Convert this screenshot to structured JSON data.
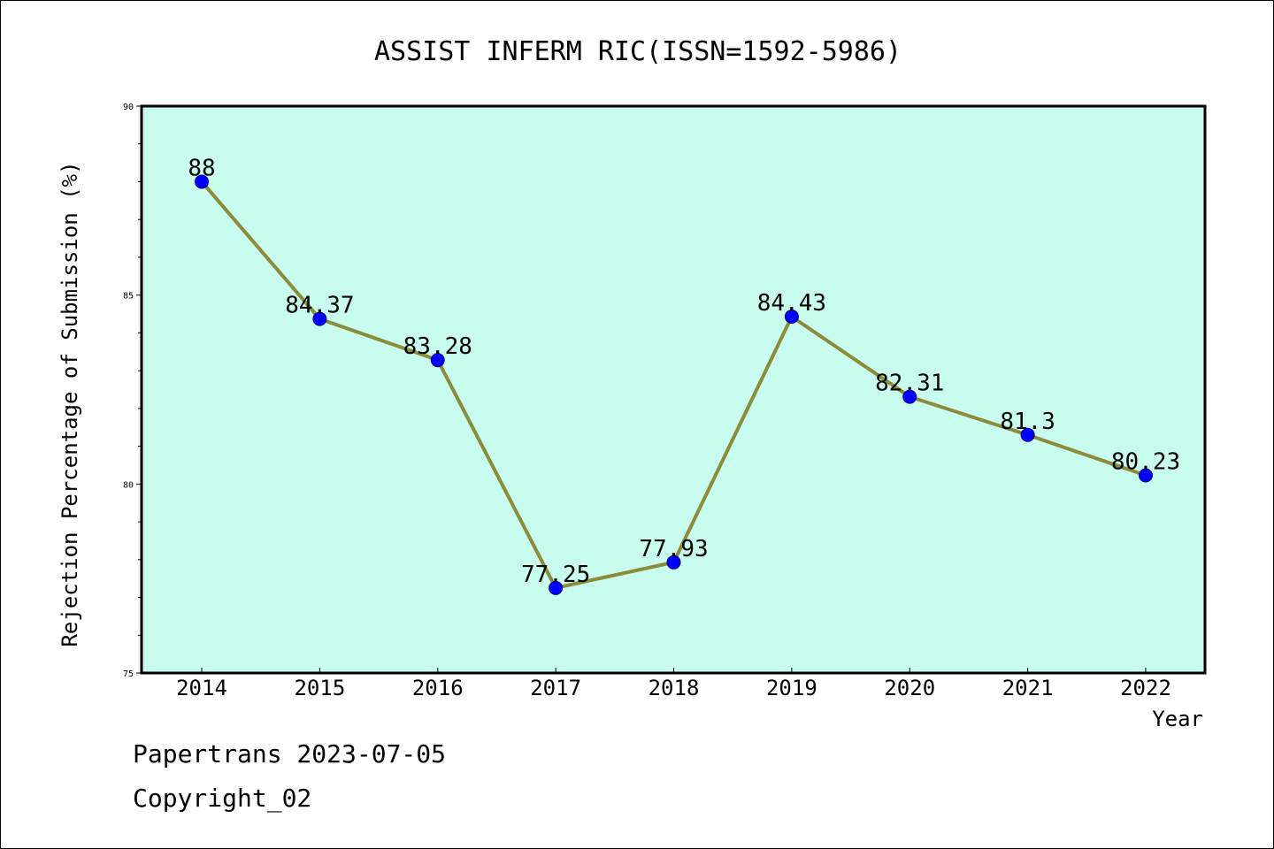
{
  "chart_data": {
    "type": "line",
    "title": "ASSIST INFERM RIC(ISSN=1592-5986)",
    "xlabel": "Year",
    "ylabel": "Rejection Percentage of Submission (%)",
    "x": [
      "2014",
      "2015",
      "2016",
      "2017",
      "2018",
      "2019",
      "2020",
      "2021",
      "2022"
    ],
    "series": [
      {
        "values": [
          88,
          84.37,
          83.28,
          77.25,
          77.93,
          84.43,
          82.31,
          81.3,
          80.23
        ],
        "labels": [
          "88",
          "84.37",
          "83.28",
          "77.25",
          "77.93",
          "84.43",
          "82.31",
          "81.3",
          "80.23"
        ]
      }
    ],
    "ylim": [
      75,
      90
    ],
    "yticks": [
      "75",
      "80",
      "85",
      "90"
    ],
    "grid": false,
    "colors": {
      "plot_background": "#c8fcee",
      "line": "#8b8b3a",
      "marker": "#0000ff"
    }
  },
  "footer": {
    "line1": "Papertrans 2023-07-05",
    "line2": "Copyright_02"
  }
}
